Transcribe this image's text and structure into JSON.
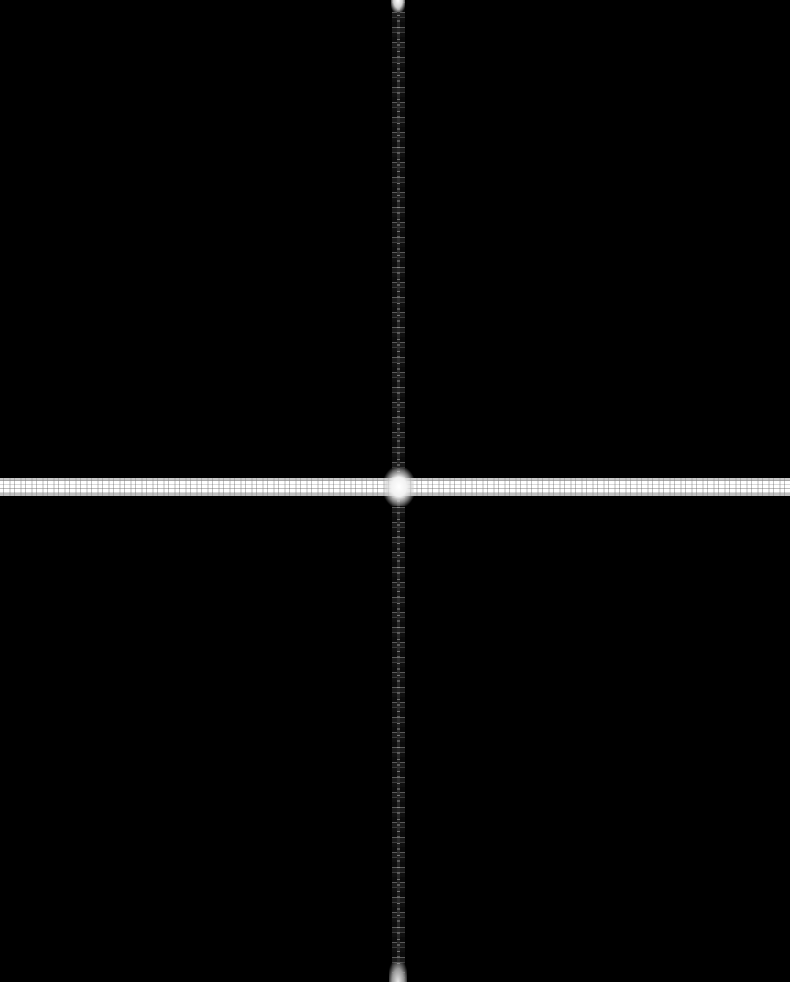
{
  "image": {
    "description_colors": {
      "panel": "#000000",
      "separator": "#ffffff",
      "seam": "#3a3a3a"
    },
    "panels": [
      {
        "position": "top-left"
      },
      {
        "position": "top-right"
      },
      {
        "position": "bottom-left"
      },
      {
        "position": "bottom-right"
      }
    ]
  }
}
